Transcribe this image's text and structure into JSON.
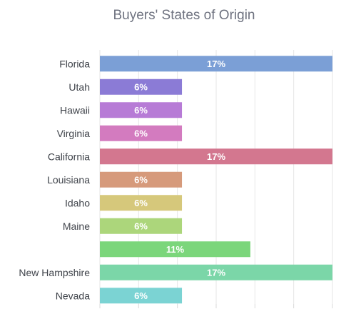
{
  "chart_data": {
    "type": "bar",
    "orientation": "horizontal",
    "title": "Buyers' States of Origin",
    "xlabel": "",
    "ylabel": "",
    "categories": [
      "Florida",
      "Utah",
      "Hawaii",
      "Virginia",
      "California",
      "Louisiana",
      "Idaho",
      "Maine",
      "",
      "New Hampshire",
      "Nevada"
    ],
    "values": [
      17,
      6,
      6,
      6,
      17,
      6,
      6,
      6,
      11,
      17,
      6
    ],
    "data_labels": [
      "17%",
      "6%",
      "6%",
      "6%",
      "17%",
      "6%",
      "6%",
      "6%",
      "11%",
      "17%",
      "6%"
    ],
    "colors": [
      "#7b9fd6",
      "#8b7bd6",
      "#b77bd6",
      "#d37bbf",
      "#d3778f",
      "#d69a7b",
      "#d6c87b",
      "#acd67b",
      "#7bd67b",
      "#7bd6a8",
      "#7bd3d3"
    ],
    "xlim": [
      0,
      17
    ],
    "grid": true,
    "legend": "none"
  }
}
